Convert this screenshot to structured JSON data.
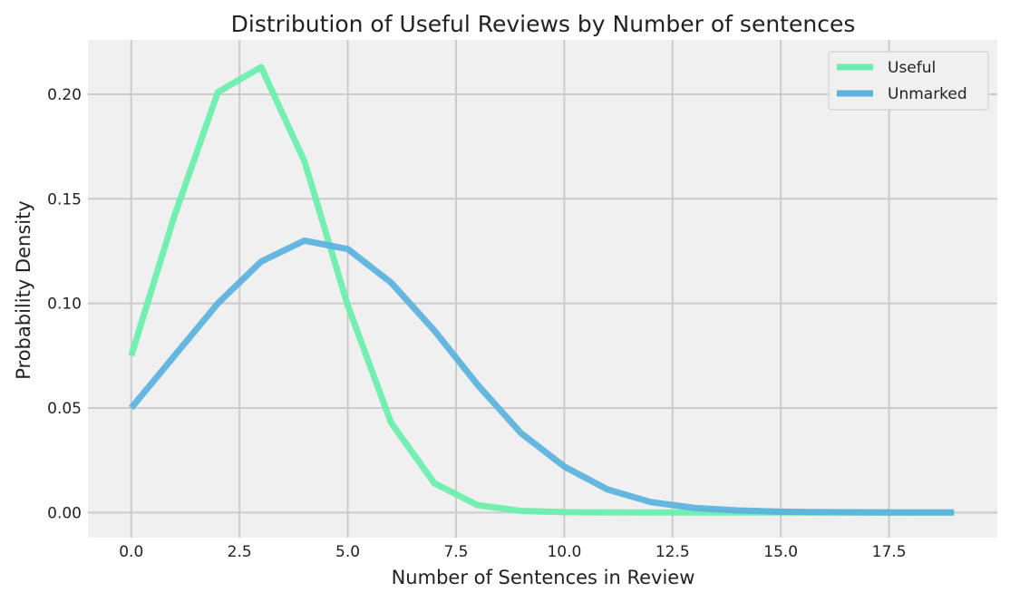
{
  "chart_data": {
    "type": "line",
    "title": "Distribution of Useful Reviews by Number of sentences",
    "xlabel": "Number of Sentences in Review",
    "ylabel": "Probability Density",
    "xlim": [
      -1.0,
      20.0
    ],
    "ylim": [
      -0.012,
      0.226
    ],
    "xticks": [
      0.0,
      2.5,
      5.0,
      7.5,
      10.0,
      12.5,
      15.0,
      17.5
    ],
    "xtick_labels": [
      "0.0",
      "2.5",
      "5.0",
      "7.5",
      "10.0",
      "12.5",
      "15.0",
      "17.5"
    ],
    "yticks": [
      0.0,
      0.05,
      0.1,
      0.15,
      0.2
    ],
    "ytick_labels": [
      "0.00",
      "0.05",
      "0.10",
      "0.15",
      "0.20"
    ],
    "grid": true,
    "legend_position": "top-right",
    "series": [
      {
        "name": "Useful",
        "color": "#6BEEAE",
        "x": [
          0,
          1,
          2,
          3,
          4,
          5,
          6,
          7,
          8,
          9,
          10,
          11,
          12,
          13,
          14,
          15,
          16,
          17,
          18,
          19
        ],
        "values": [
          0.075,
          0.142,
          0.201,
          0.213,
          0.168,
          0.099,
          0.043,
          0.014,
          0.0035,
          0.0008,
          0.0002,
          0.0001,
          0.0,
          0.0,
          0.0,
          0.0,
          0.0,
          0.0,
          0.0,
          0.0
        ]
      },
      {
        "name": "Unmarked",
        "color": "#5DB3DD",
        "x": [
          0,
          1,
          2,
          3,
          4,
          5,
          6,
          7,
          8,
          9,
          10,
          11,
          12,
          13,
          14,
          15,
          16,
          17,
          18,
          19
        ],
        "values": [
          0.05,
          0.075,
          0.1,
          0.12,
          0.13,
          0.126,
          0.11,
          0.087,
          0.061,
          0.038,
          0.022,
          0.011,
          0.005,
          0.0022,
          0.001,
          0.0004,
          0.0002,
          0.0001,
          0.0,
          0.0
        ]
      }
    ]
  }
}
